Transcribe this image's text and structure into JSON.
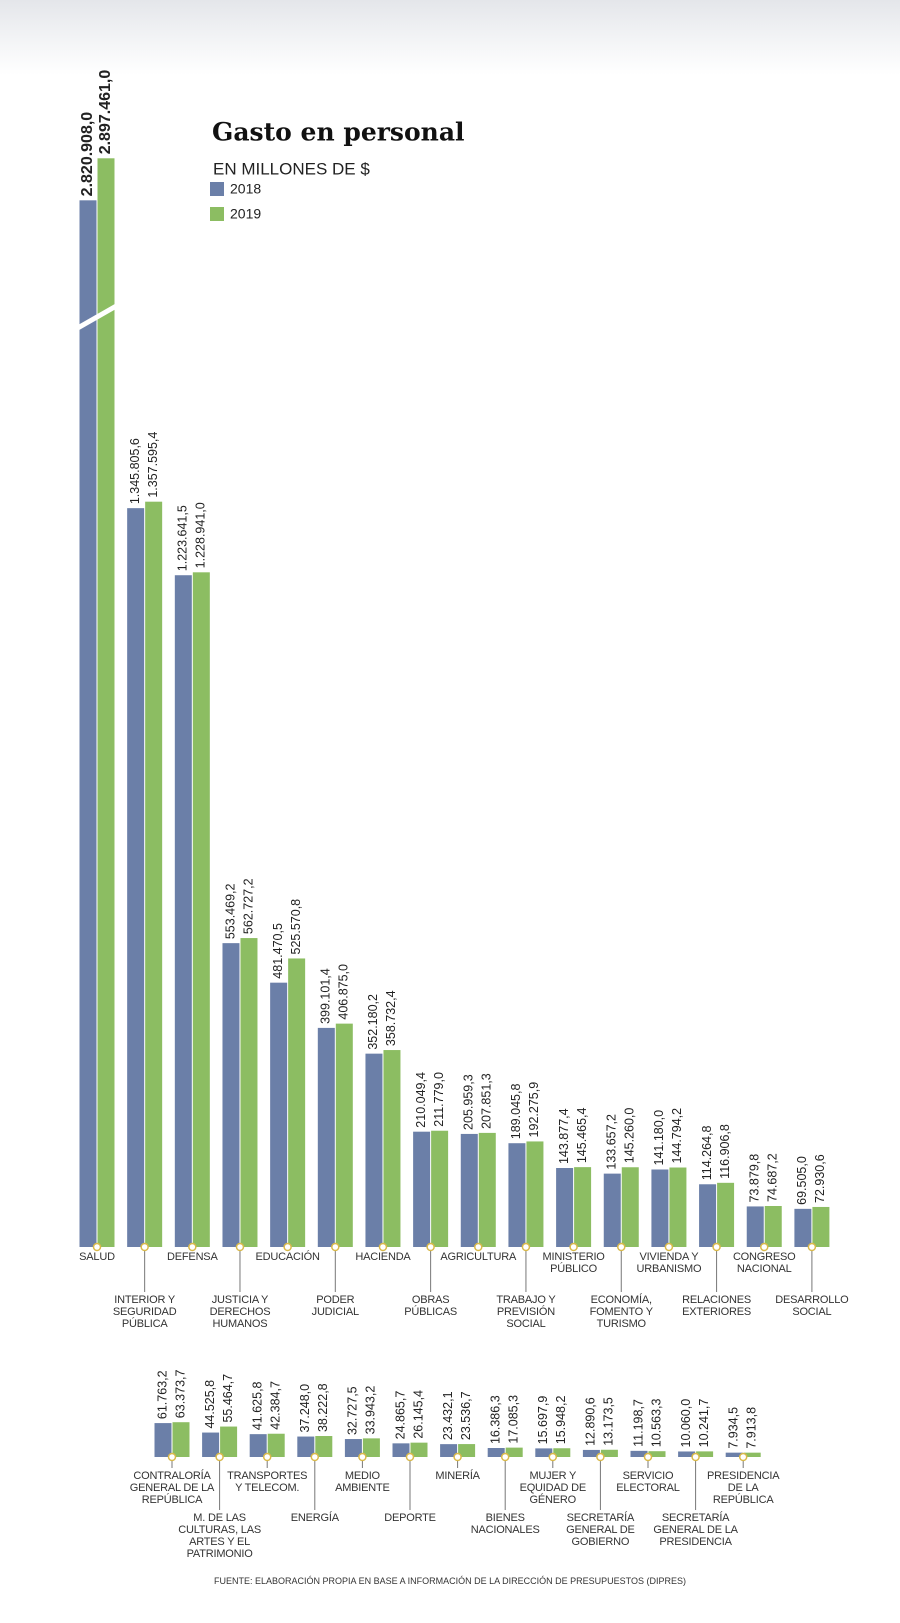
{
  "chart_data": [
    {
      "type": "bar",
      "title": "Gasto en personal",
      "subtitle": "EN MILLONES DE $",
      "categories": [
        "SALUD",
        "INTERIOR Y SEGURIDAD PÚBLICA",
        "DEFENSA",
        "JUSTICIA Y DERECHOS HUMANOS",
        "EDUCACIÓN",
        "PODER JUDICIAL",
        "HACIENDA",
        "OBRAS PÚBLICAS",
        "AGRICULTURA",
        "TRABAJO Y PREVISIÓN SOCIAL",
        "MINISTERIO PÚBLICO",
        "ECONOMÍA, FOMENTO Y TURISMO",
        "VIVIENDA Y URBANISMO",
        "RELACIONES EXTERIORES",
        "CONGRESO NACIONAL",
        "DESARROLLO SOCIAL"
      ],
      "series": [
        {
          "name": "2018",
          "color": "#6b7fa8",
          "values": [
            2820908.0,
            1345805.6,
            1223641.5,
            553469.2,
            481470.5,
            399101.4,
            352180.2,
            210049.4,
            205959.3,
            189045.8,
            143877.4,
            133657.2,
            141180.0,
            114264.8,
            73879.8,
            69505.0
          ],
          "value_labels": [
            "2.820.908,0",
            "1.345.805,6",
            "1.223.641,5",
            "553.469,2",
            "481.470,5",
            "399.101,4",
            "352.180,2",
            "210.049,4",
            "205.959,3",
            "189.045,8",
            "143.877,4",
            "133.657,2",
            "141.180,0",
            "114.264,8",
            "73.879,8",
            "69.505,0"
          ]
        },
        {
          "name": "2019",
          "color": "#8cbd62",
          "values": [
            2897461.0,
            1357595.4,
            1228941.0,
            562727.2,
            525570.8,
            406875.0,
            358732.4,
            211779.0,
            207851.3,
            192275.9,
            145465.4,
            145260.0,
            144794.2,
            116906.8,
            74687.2,
            72930.6
          ],
          "value_labels": [
            "2.897.461,0",
            "1.357.595,4",
            "1.228.941,0",
            "562.727,2",
            "525.570,8",
            "406.875,0",
            "358.732,4",
            "211.779,0",
            "207.851,3",
            "192.275,9",
            "145.465,4",
            "145.260,0",
            "144.794,2",
            "116.906,8",
            "74.687,2",
            "72.930,6"
          ]
        }
      ]
    },
    {
      "type": "bar",
      "categories": [
        "CONTRALORÍA GENERAL DE LA REPÚBLICA",
        "M. DE LAS CULTURAS, LAS ARTES Y EL PATRIMONIO",
        "TRANSPORTES Y TELECOM.",
        "ENERGÍA",
        "MEDIO AMBIENTE",
        "DEPORTE",
        "MINERÍA",
        "BIENES NACIONALES",
        "MUJER Y EQUIDAD DE GÉNERO",
        "SECRETARÍA GENERAL DE GOBIERNO",
        "SERVICIO ELECTORAL",
        "SECRETARÍA GENERAL DE LA PRESIDENCIA",
        "PRESIDENCIA DE LA REPÚBLICA"
      ],
      "series": [
        {
          "color": "#6b7fa8",
          "values": [
            61763.2,
            44525.8,
            41625.8,
            37248.0,
            32727.5,
            24865.7,
            23432.1,
            16386.3,
            15697.9,
            12890.6,
            11198.7,
            10060.0,
            7934.5
          ],
          "value_labels": [
            "61.763,2",
            "44.525,8",
            "41.625,8",
            "37.248,0",
            "32.727,5",
            "24.865,7",
            "23.432,1",
            "16.386,3",
            "15.697,9",
            "12.890,6",
            "11.198,7",
            "10.060,0",
            "7.934,5"
          ]
        },
        {
          "color": "#8cbd62",
          "values": [
            63373.7,
            55464.7,
            42384.7,
            38222.8,
            33943.2,
            26145.4,
            23536.7,
            17085.3,
            15948.2,
            13173.5,
            10563.3,
            10241.7,
            7913.8
          ],
          "value_labels": [
            "63.373,7",
            "55.464,7",
            "42.384,7",
            "38.222,8",
            "33.943,2",
            "26.145,4",
            "23.536,7",
            "17.085,3",
            "15.948,2",
            "13.173,5",
            "10.563,3",
            "10.241,7",
            "7.913,8"
          ]
        }
      ]
    }
  ],
  "source": "FUENTE: ELABORACIÓN PROPIA EN BASE A INFORMACIÓN DE LA DIRECCIÓN DE PRESUPUESTOS (DIPRES)"
}
